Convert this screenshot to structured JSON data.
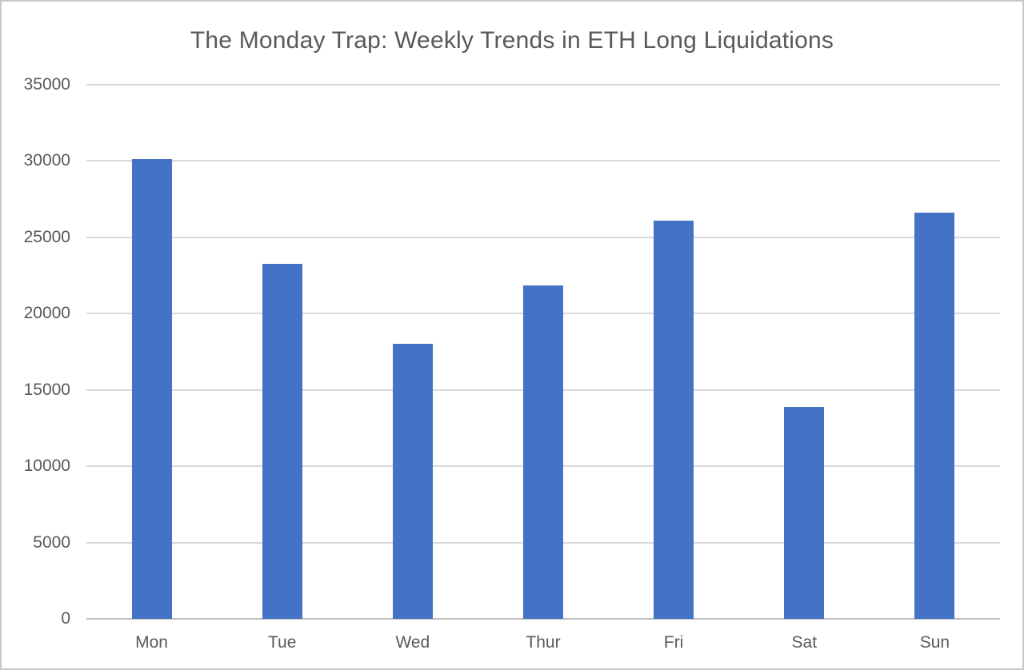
{
  "chart_data": {
    "type": "bar",
    "title": "The Monday Trap: Weekly Trends in ETH Long Liquidations",
    "categories": [
      "Mon",
      "Tue",
      "Wed",
      "Thur",
      "Fri",
      "Sat",
      "Sun"
    ],
    "values": [
      30150,
      23250,
      18000,
      21850,
      26100,
      13900,
      26600
    ],
    "xlabel": "",
    "ylabel": "",
    "ylim": [
      0,
      35000
    ],
    "ytick_step": 5000,
    "ytick_labels": [
      "0",
      "5000",
      "10000",
      "15000",
      "20000",
      "25000",
      "30000",
      "35000"
    ],
    "grid": "horizontal",
    "legend": "none",
    "colors": {
      "bar": "#4472c4",
      "gridline": "#d9d9d9",
      "axis_line": "#bfbfbf",
      "text": "#595959",
      "background": "#ffffff",
      "frame_border": "#c9c9c9"
    }
  }
}
